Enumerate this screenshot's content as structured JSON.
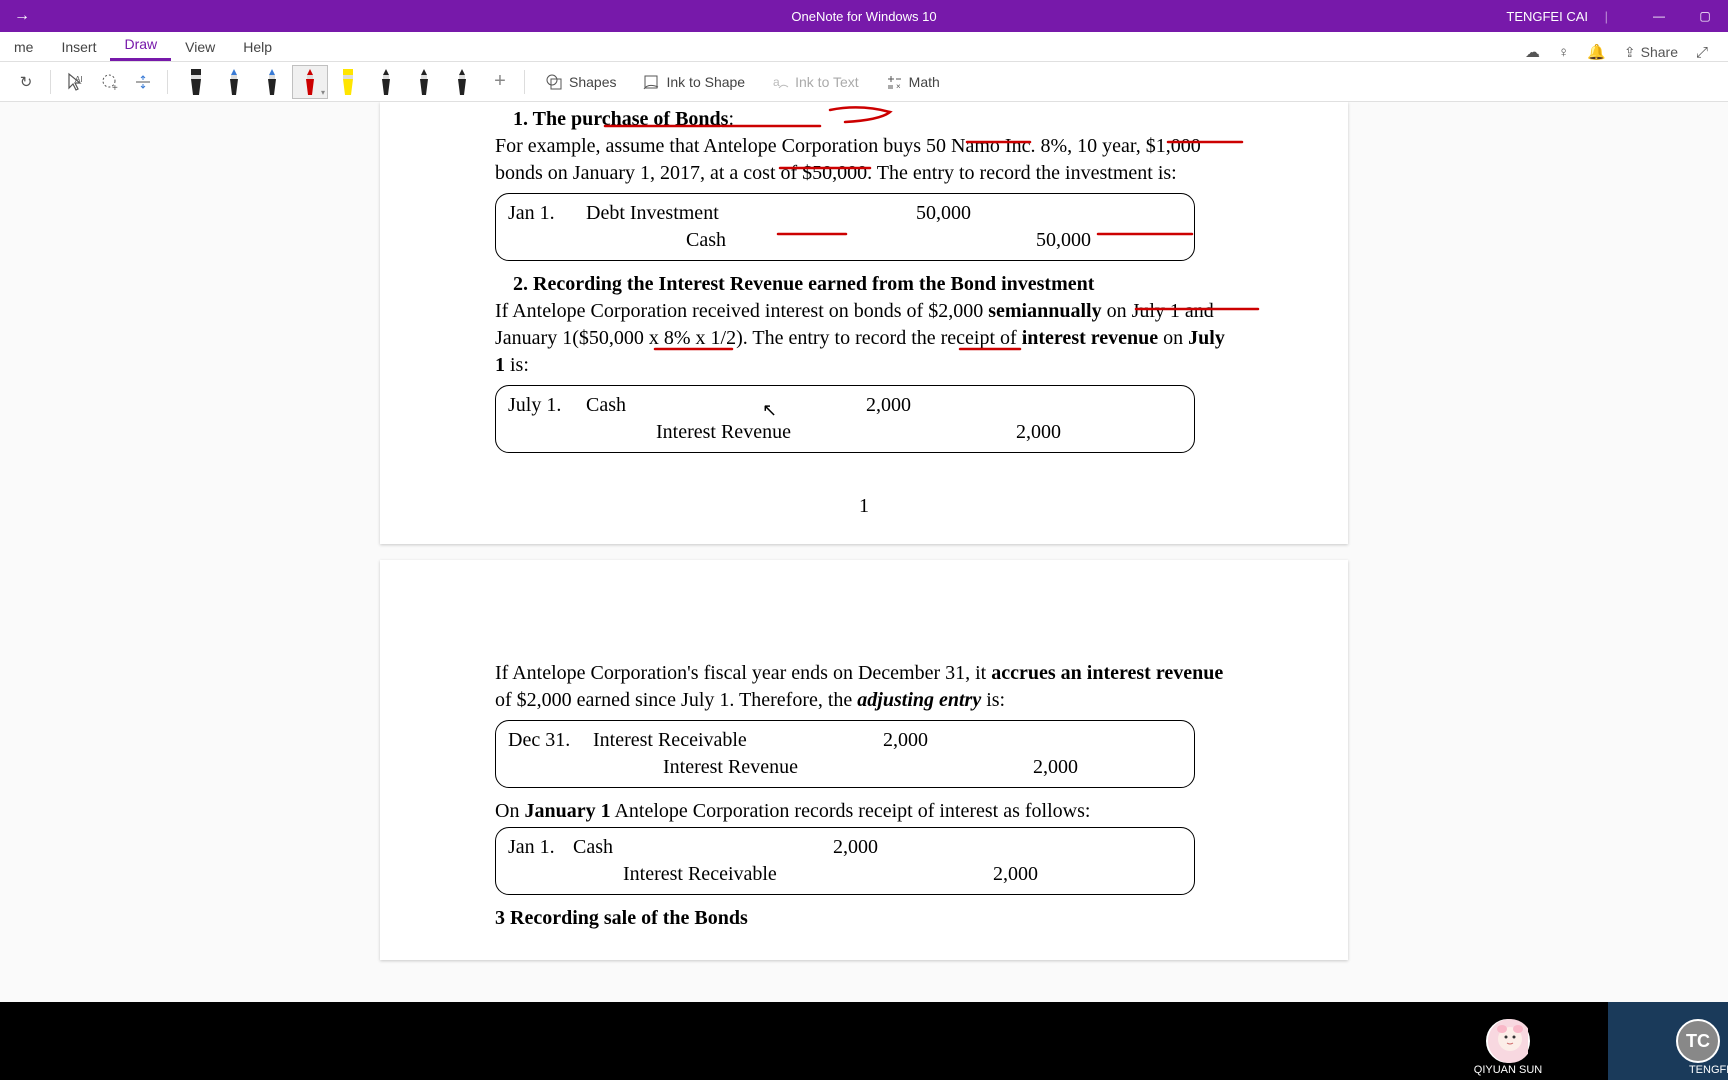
{
  "titlebar": {
    "app_title": "OneNote for Windows 10",
    "user_name": "TENGFEI CAI"
  },
  "tabs": {
    "home": "me",
    "insert": "Insert",
    "draw": "Draw",
    "view": "View",
    "help": "Help",
    "share": "Share"
  },
  "toolbar": {
    "shapes": "Shapes",
    "ink_to_shape": "Ink to Shape",
    "ink_to_text": "Ink to Text",
    "math": "Math",
    "pens": [
      {
        "body": "#222",
        "tip": "#222",
        "kind": "marker"
      },
      {
        "body": "#222",
        "tip": "#3a7bd5",
        "kind": "pen"
      },
      {
        "body": "#222",
        "tip": "#3a7bd5",
        "kind": "pen"
      },
      {
        "body": "#cc0000",
        "tip": "#cc0000",
        "kind": "pen",
        "selected": true
      },
      {
        "body": "#ffe500",
        "tip": "#ffe500",
        "kind": "marker"
      },
      {
        "body": "#222",
        "tip": "#222",
        "kind": "pen"
      },
      {
        "body": "#222",
        "tip": "#222",
        "kind": "pen"
      },
      {
        "body": "#222",
        "tip": "#222",
        "kind": "pen"
      }
    ]
  },
  "doc": {
    "h1_prefix": "1.   ",
    "h1": "The purchase of Bonds",
    "h1_suffix": ":",
    "p1a": "For example, assume that Antelope Corporation buys 50 Namo Inc. 8%, 10 year, $1,000 bonds on January 1, 2017, at a cost of $50,000. The entry to record the investment is:",
    "e1": {
      "date": "Jan 1.",
      "acct": "Debt Investment",
      "debit": "50,000",
      "sub": "Cash",
      "credit": "50,000"
    },
    "h2_prefix": "2.   ",
    "h2": "Recording the Interest Revenue earned from the Bond investment",
    "p2a": "If Antelope Corporation received interest on bonds of $2,000 ",
    "p2b": "semiannually",
    "p2c": " on July 1 and January 1($50,000 x 8% x 1/2). The entry to record the receipt of ",
    "p2d": "interest revenue",
    "p2e": " on ",
    "p2f": "July 1",
    "p2g": " is:",
    "e2": {
      "date": "July 1.",
      "acct": "Cash",
      "debit": "2,000",
      "sub": "Interest Revenue",
      "credit": "2,000"
    },
    "page_num": "1",
    "p3a": "If Antelope Corporation's fiscal year ends on December 31, it ",
    "p3b": "accrues an interest revenue",
    "p3c": " of $2,000 earned since July 1. Therefore, the ",
    "p3d": "adjusting entry",
    "p3e": " is:",
    "e3": {
      "date": "Dec 31.",
      "acct": "Interest Receivable",
      "debit": "2,000",
      "sub": "Interest Revenue",
      "credit": "2,000"
    },
    "p4a": "On ",
    "p4b": "January 1",
    "p4c": " Antelope Corporation records receipt of interest as follows:",
    "e4": {
      "date": "Jan 1.",
      "acct": "Cash",
      "debit": "2,000",
      "sub": "Interest Receivable",
      "credit": "2,000"
    },
    "h3": "3   Recording sale of the Bonds"
  },
  "participants": {
    "p1": "QIYUAN SUN",
    "p2": "TENGFEI CAI",
    "p2_initials": "TC"
  },
  "colors": {
    "accent": "#7719aa",
    "ink": "#cc0000"
  }
}
